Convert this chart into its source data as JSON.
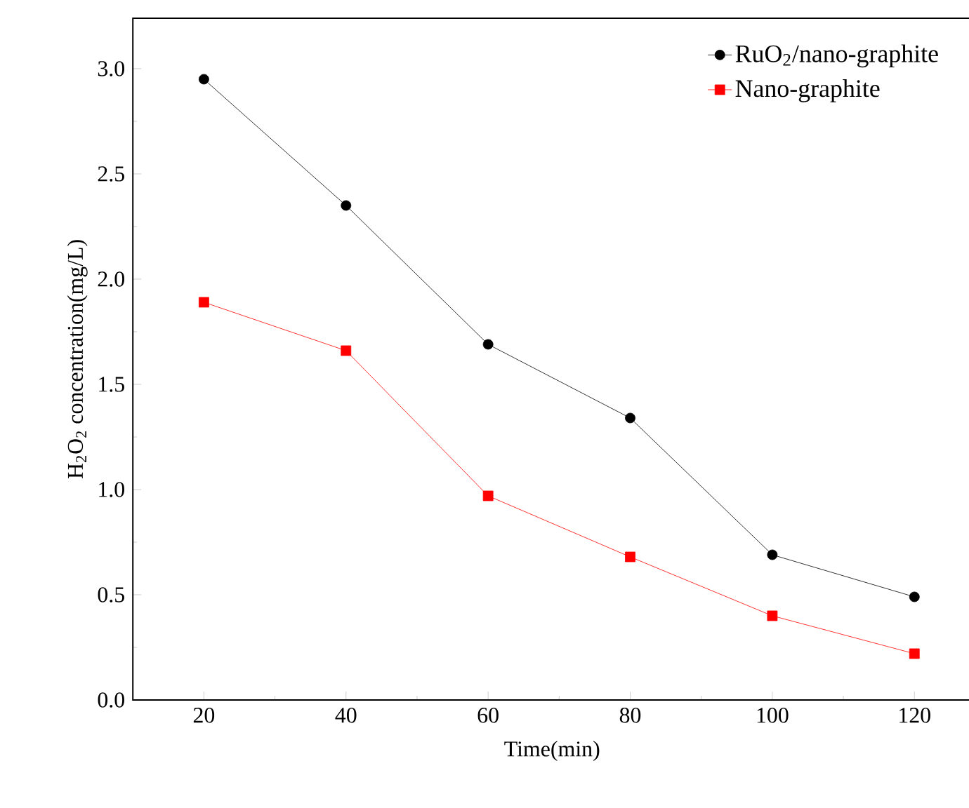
{
  "chart_data": {
    "type": "line",
    "xlabel": "Time(min)",
    "ylabel": "H$_{2}$O$_{2}$ concentration(mg/L)",
    "x": [
      20,
      40,
      60,
      80,
      100,
      120
    ],
    "series": [
      {
        "name": "RuO$_{2}$/nano-graphite",
        "color": "#000000",
        "marker": "circle",
        "values": [
          2.95,
          2.35,
          1.69,
          1.34,
          0.69,
          0.49
        ]
      },
      {
        "name": "Nano-graphite",
        "color": "#ff0000",
        "marker": "square",
        "values": [
          1.89,
          1.66,
          0.97,
          0.68,
          0.4,
          0.22
        ]
      }
    ],
    "xlim": [
      10,
      128
    ],
    "ylim": [
      0,
      3.24
    ],
    "xticks": [
      20,
      40,
      60,
      80,
      100,
      120
    ],
    "yticks": [
      {
        "value": 0,
        "label": "0.0"
      },
      {
        "value": 0.5,
        "label": "0.5"
      },
      {
        "value": 1,
        "label": "1.0"
      },
      {
        "value": 1.5,
        "label": "1.5"
      },
      {
        "value": 2,
        "label": "2.0"
      },
      {
        "value": 2.5,
        "label": "2.5"
      },
      {
        "value": 3,
        "label": "3.0"
      }
    ],
    "legend": "top right",
    "grid": false,
    "line_style": "solid"
  }
}
